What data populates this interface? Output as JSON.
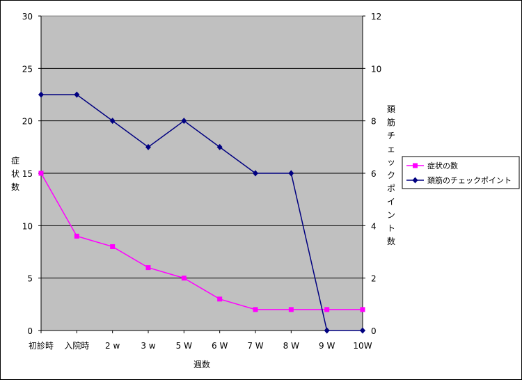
{
  "chart_data": {
    "type": "line",
    "title": "",
    "xlabel": "週数",
    "ylabel_left": "症状数",
    "ylabel_right": "頚筋チェックポイント数",
    "categories": [
      "初診時",
      "入院時",
      "2 w",
      "3 w",
      "5 W",
      "6 W",
      "7 W",
      "8 W",
      "9 W",
      "10W"
    ],
    "ylim_left": [
      0,
      30
    ],
    "yticks_left": [
      "0",
      "5",
      "10",
      "15",
      "20",
      "25",
      "30"
    ],
    "ylim_right": [
      0,
      12
    ],
    "yticks_right": [
      "0",
      "2",
      "4",
      "6",
      "8",
      "10",
      "12"
    ],
    "grid": true,
    "plot_background": "#c0c0c0",
    "legend_position": "right",
    "series": [
      {
        "name": "症状の数",
        "axis": "left",
        "color": "#ff00ff",
        "marker": "square",
        "values": [
          15,
          9,
          8,
          6,
          5,
          3,
          2,
          2,
          2,
          2
        ]
      },
      {
        "name": "頚筋のチェックポイント",
        "axis": "right",
        "color": "#000080",
        "marker": "diamond",
        "values": [
          9,
          9,
          8,
          7,
          8,
          7,
          6,
          6,
          0,
          0
        ]
      }
    ]
  }
}
